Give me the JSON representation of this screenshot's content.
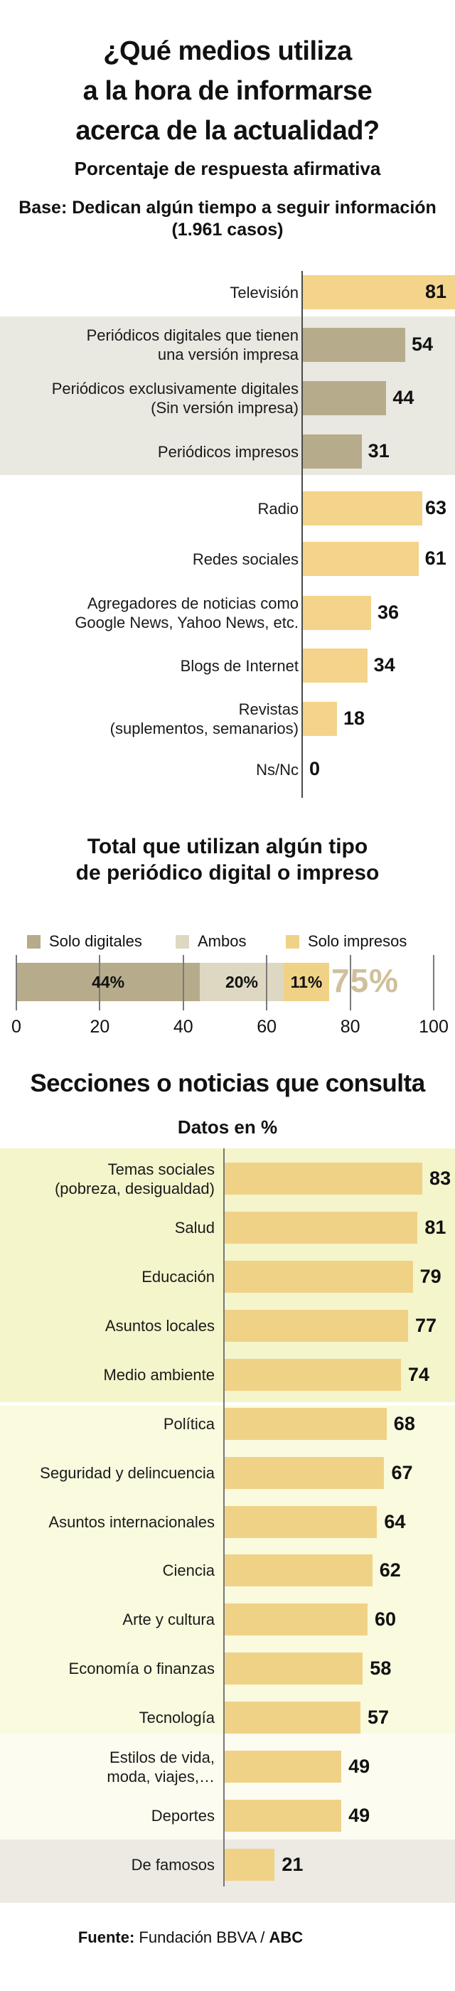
{
  "header": {
    "title_lines": [
      "¿Qué medios utiliza",
      "a la hora de informarse",
      "acerca de la actualidad?"
    ],
    "subtitle": "Porcentaje de respuesta afirmativa",
    "base_lines": [
      "Base: Dedican algún tiempo a seguir información",
      "(1.961 casos)"
    ]
  },
  "colors": {
    "bar_yellow": "#f4d38a",
    "bar_khaki": "#b6ab8b",
    "ambos_beige": "#ded8c3",
    "sections_yellow": "#f0d287",
    "grey_band": "#e9e8e1",
    "band1": "#f4f5cb",
    "band2": "#f9fade",
    "band3": "#fcfcf0",
    "band4": "#eceae2",
    "total_label": "#cfc09b",
    "axis_dark": "#4a4a4a",
    "axis_grey": "#777777",
    "gridline": "#7a7a7a"
  },
  "chart_data": [
    {
      "id": "media-usage",
      "type": "bar",
      "title": "¿Qué medios utiliza a la hora de informarse acerca de la actualidad?",
      "unit": "% respuesta afirmativa",
      "xlim": [
        0,
        81
      ],
      "rows": [
        {
          "label": "Televisión",
          "label_lines": [
            "Televisión"
          ],
          "value": 81,
          "color": "yellow",
          "band": "white"
        },
        {
          "label": "Periódicos digitales que tienen una versión impresa",
          "label_lines": [
            "Periódicos digitales que tienen",
            "una versión impresa"
          ],
          "value": 54,
          "color": "khaki",
          "band": "grey"
        },
        {
          "label": "Periódicos exclusivamente digitales (Sin versión impresa)",
          "label_lines": [
            "Periódicos exclusivamente digitales",
            "(Sin versión impresa)"
          ],
          "value": 44,
          "color": "khaki",
          "band": "grey"
        },
        {
          "label": "Periódicos impresos",
          "label_lines": [
            "Periódicos impresos"
          ],
          "value": 31,
          "color": "khaki",
          "band": "grey"
        },
        {
          "label": "Radio",
          "label_lines": [
            "Radio"
          ],
          "value": 63,
          "color": "yellow",
          "band": "white"
        },
        {
          "label": "Redes sociales",
          "label_lines": [
            "Redes sociales"
          ],
          "value": 61,
          "color": "yellow",
          "band": "white"
        },
        {
          "label": "Agregadores de noticias como Google News, Yahoo News, etc.",
          "label_lines": [
            "Agregadores de noticias como",
            "Google News, Yahoo News, etc."
          ],
          "value": 36,
          "color": "yellow",
          "band": "white"
        },
        {
          "label": "Blogs de Internet",
          "label_lines": [
            "Blogs de Internet"
          ],
          "value": 34,
          "color": "yellow",
          "band": "white"
        },
        {
          "label": "Revistas (suplementos, semanarios)",
          "label_lines": [
            "Revistas",
            "(suplementos, semanarios)"
          ],
          "value": 18,
          "color": "yellow",
          "band": "white"
        },
        {
          "label": "Ns/Nc",
          "label_lines": [
            "Ns/Nc"
          ],
          "value": 0,
          "color": "yellow",
          "band": "white"
        }
      ]
    },
    {
      "id": "newspaper-total",
      "type": "stacked_bar",
      "title_lines": [
        "Total que utilizan algún tipo",
        "de periódico digital o impreso"
      ],
      "title": "Total que utilizan algún tipo de periódico digital o impreso",
      "xlim": [
        0,
        100
      ],
      "x_ticks": [
        "0",
        "20",
        "40",
        "60",
        "80",
        "100"
      ],
      "segments": [
        {
          "name": "Solo digitales",
          "value": 44,
          "label": "44%",
          "color": "khaki"
        },
        {
          "name": "Ambos",
          "value": 20,
          "label": "20%",
          "color": "beige"
        },
        {
          "name": "Solo impresos",
          "value": 11,
          "label": "11%",
          "color": "yellow"
        }
      ],
      "total_value": 75,
      "total_label": "75%"
    },
    {
      "id": "sections-consulted",
      "type": "bar",
      "title": "Secciones o noticias que consulta",
      "subtitle": "Datos en %",
      "xlim": [
        0,
        83
      ],
      "rows": [
        {
          "label": "Temas sociales (pobreza, desigualdad)",
          "label_lines": [
            "Temas sociales",
            "(pobreza, desigualdad)"
          ],
          "value": 83,
          "band": 1
        },
        {
          "label": "Salud",
          "label_lines": [
            "Salud"
          ],
          "value": 81,
          "band": 1
        },
        {
          "label": "Educación",
          "label_lines": [
            "Educación"
          ],
          "value": 79,
          "band": 1
        },
        {
          "label": "Asuntos locales",
          "label_lines": [
            "Asuntos locales"
          ],
          "value": 77,
          "band": 1
        },
        {
          "label": "Medio ambiente",
          "label_lines": [
            "Medio ambiente"
          ],
          "value": 74,
          "band": 1
        },
        {
          "label": "Política",
          "label_lines": [
            "Política"
          ],
          "value": 68,
          "band": 2
        },
        {
          "label": "Seguridad y delincuencia",
          "label_lines": [
            "Seguridad y delincuencia"
          ],
          "value": 67,
          "band": 2
        },
        {
          "label": "Asuntos internacionales",
          "label_lines": [
            "Asuntos internacionales"
          ],
          "value": 64,
          "band": 2
        },
        {
          "label": "Ciencia",
          "label_lines": [
            "Ciencia"
          ],
          "value": 62,
          "band": 2
        },
        {
          "label": "Arte y cultura",
          "label_lines": [
            "Arte y cultura"
          ],
          "value": 60,
          "band": 2
        },
        {
          "label": "Economía o finanzas",
          "label_lines": [
            "Economía o finanzas"
          ],
          "value": 58,
          "band": 2
        },
        {
          "label": "Tecnología",
          "label_lines": [
            "Tecnología"
          ],
          "value": 57,
          "band": 2
        },
        {
          "label": "Estilos de vida, moda, viajes,…",
          "label_lines": [
            "Estilos de vida,",
            "moda, viajes,…"
          ],
          "value": 49,
          "band": 3
        },
        {
          "label": "Deportes",
          "label_lines": [
            "Deportes"
          ],
          "value": 49,
          "band": 3
        },
        {
          "label": "De famosos",
          "label_lines": [
            "De famosos"
          ],
          "value": 21,
          "band": 4
        }
      ]
    }
  ],
  "footer": {
    "source_prefix": "Fuente:",
    "source": "Fundación BBVA",
    "separator": "/",
    "brand": "ABC"
  }
}
